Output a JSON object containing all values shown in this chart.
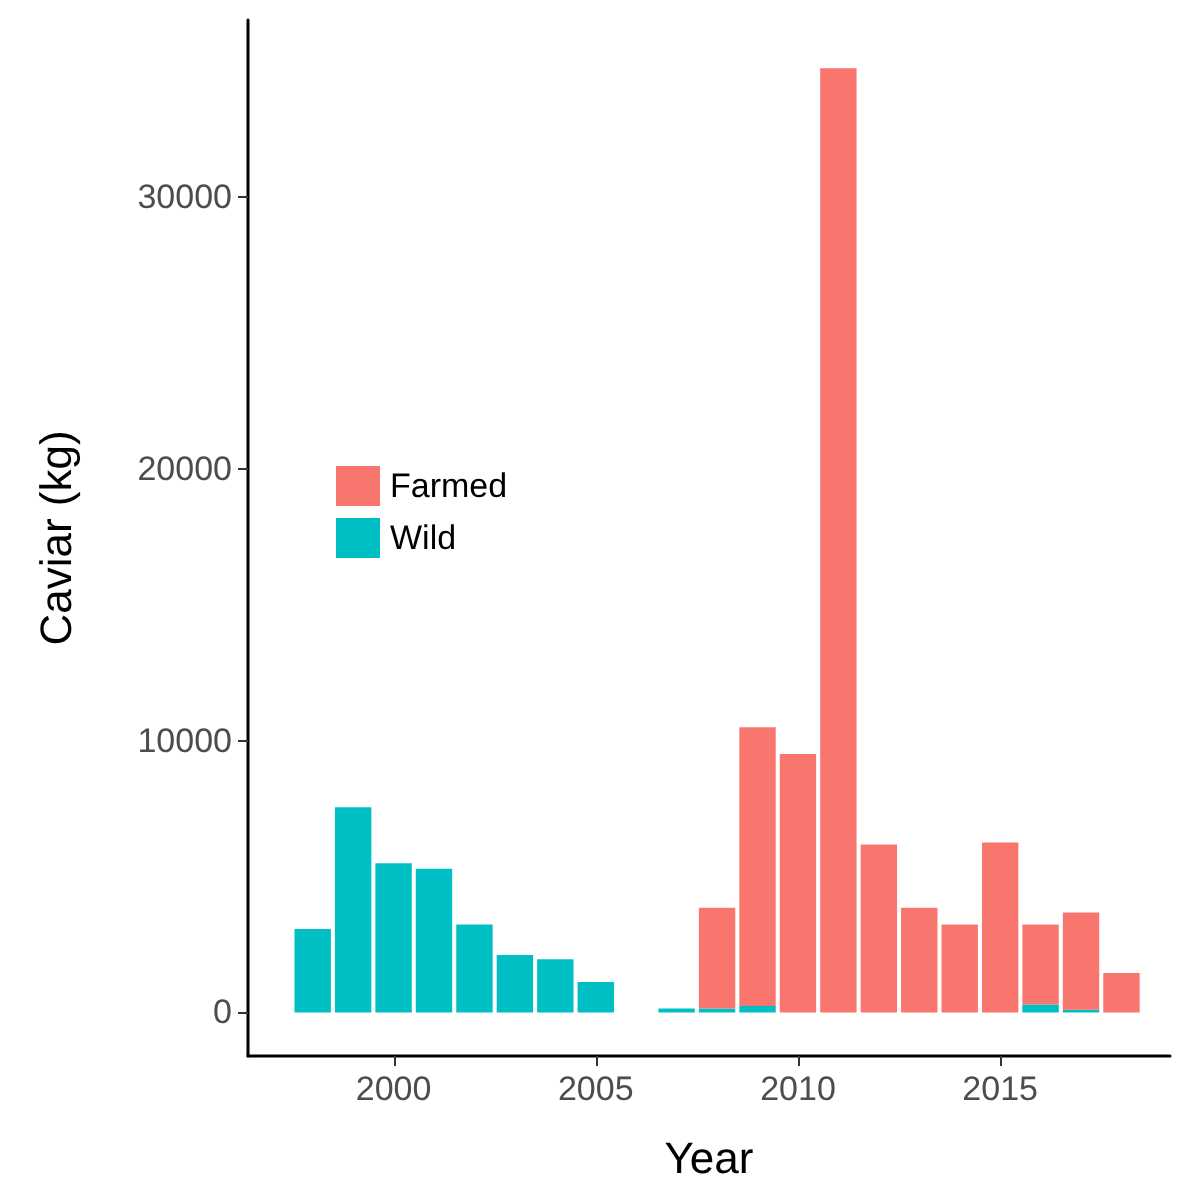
{
  "chart_data": {
    "type": "bar",
    "stacked": true,
    "xlabel": "Year",
    "ylabel": "Caviar (kg)",
    "x": [
      1998,
      1999,
      2000,
      2001,
      2002,
      2003,
      2004,
      2005,
      2006,
      2007,
      2008,
      2009,
      2010,
      2011,
      2012,
      2013,
      2014,
      2015,
      2016,
      2017,
      2018
    ],
    "series": [
      {
        "name": "Wild",
        "color": "#00bfc4",
        "values": [
          3070,
          7550,
          5490,
          5290,
          3240,
          2110,
          1960,
          1120,
          null,
          150,
          150,
          240,
          null,
          null,
          null,
          null,
          null,
          null,
          290,
          100,
          null
        ]
      },
      {
        "name": "Farmed",
        "color": "#f8766d",
        "values": [
          null,
          null,
          null,
          null,
          null,
          null,
          null,
          null,
          null,
          null,
          3700,
          10250,
          9510,
          34730,
          6180,
          3850,
          3240,
          6250,
          2950,
          3580,
          1450
        ]
      }
    ],
    "xlim": [
      1996.4,
      2019.2
    ],
    "xticks": [
      2000,
      2005,
      2010,
      2015
    ],
    "ylim": [
      -1600,
      36500
    ],
    "yticks": [
      0,
      10000,
      20000,
      30000
    ],
    "grid": false,
    "legend": "left"
  }
}
